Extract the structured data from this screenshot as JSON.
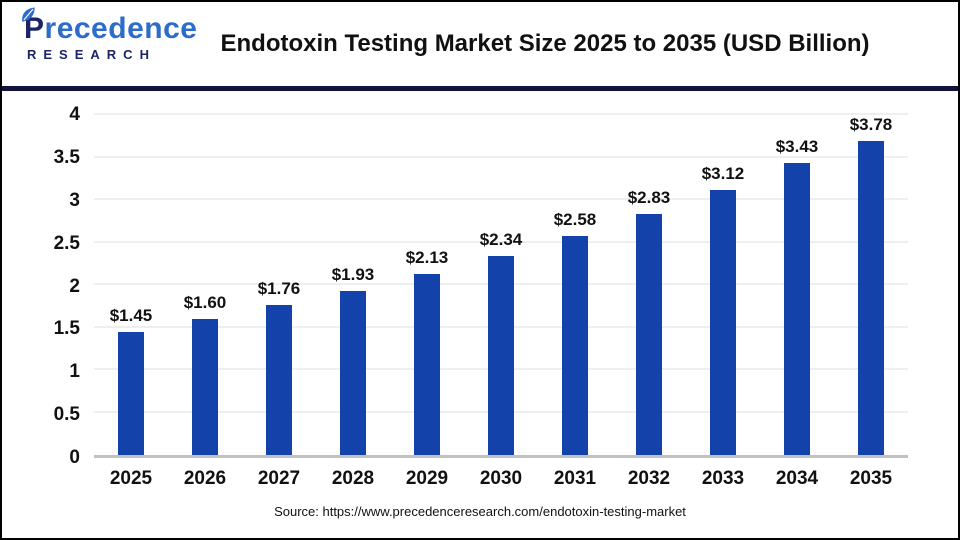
{
  "header": {
    "title": "Endotoxin Testing Market Size 2025 to 2035 (USD Billion)",
    "logo": {
      "first_letter": "P",
      "name_rest": "recedence",
      "subtitle": "RESEARCH"
    }
  },
  "chart_data": {
    "type": "bar",
    "title": "Endotoxin Testing Market Size 2025 to 2035 (USD Billion)",
    "categories": [
      "2025",
      "2026",
      "2027",
      "2028",
      "2029",
      "2030",
      "2031",
      "2032",
      "2033",
      "2034",
      "2035"
    ],
    "values": [
      1.45,
      1.6,
      1.76,
      1.93,
      2.13,
      2.34,
      2.58,
      2.83,
      3.12,
      3.43,
      3.78
    ],
    "value_labels": [
      "$1.45",
      "$1.60",
      "$1.76",
      "$1.93",
      "$2.13",
      "$2.34",
      "$2.58",
      "$2.83",
      "$3.12",
      "$3.43",
      "$3.78"
    ],
    "xlabel": "",
    "ylabel": "",
    "ylim": [
      0,
      4
    ],
    "yticks": [
      0,
      0.5,
      1,
      1.5,
      2,
      2.5,
      3,
      3.5,
      4
    ],
    "ytick_labels": [
      "0",
      "0.5",
      "1",
      "1.5",
      "2",
      "2.5",
      "3",
      "3.5",
      "4"
    ],
    "grid": true,
    "legend": false,
    "bar_color": "#1442ab"
  },
  "footer": {
    "source": "Source: https://www.precedenceresearch.com/endotoxin-testing-market"
  },
  "colors": {
    "bar": "#1442ab",
    "divider": "#12123f",
    "gridline": "#efefef",
    "baseline": "#c1c1c1",
    "logo_navy": "#1b2467",
    "logo_blue": "#2d6ccb"
  }
}
